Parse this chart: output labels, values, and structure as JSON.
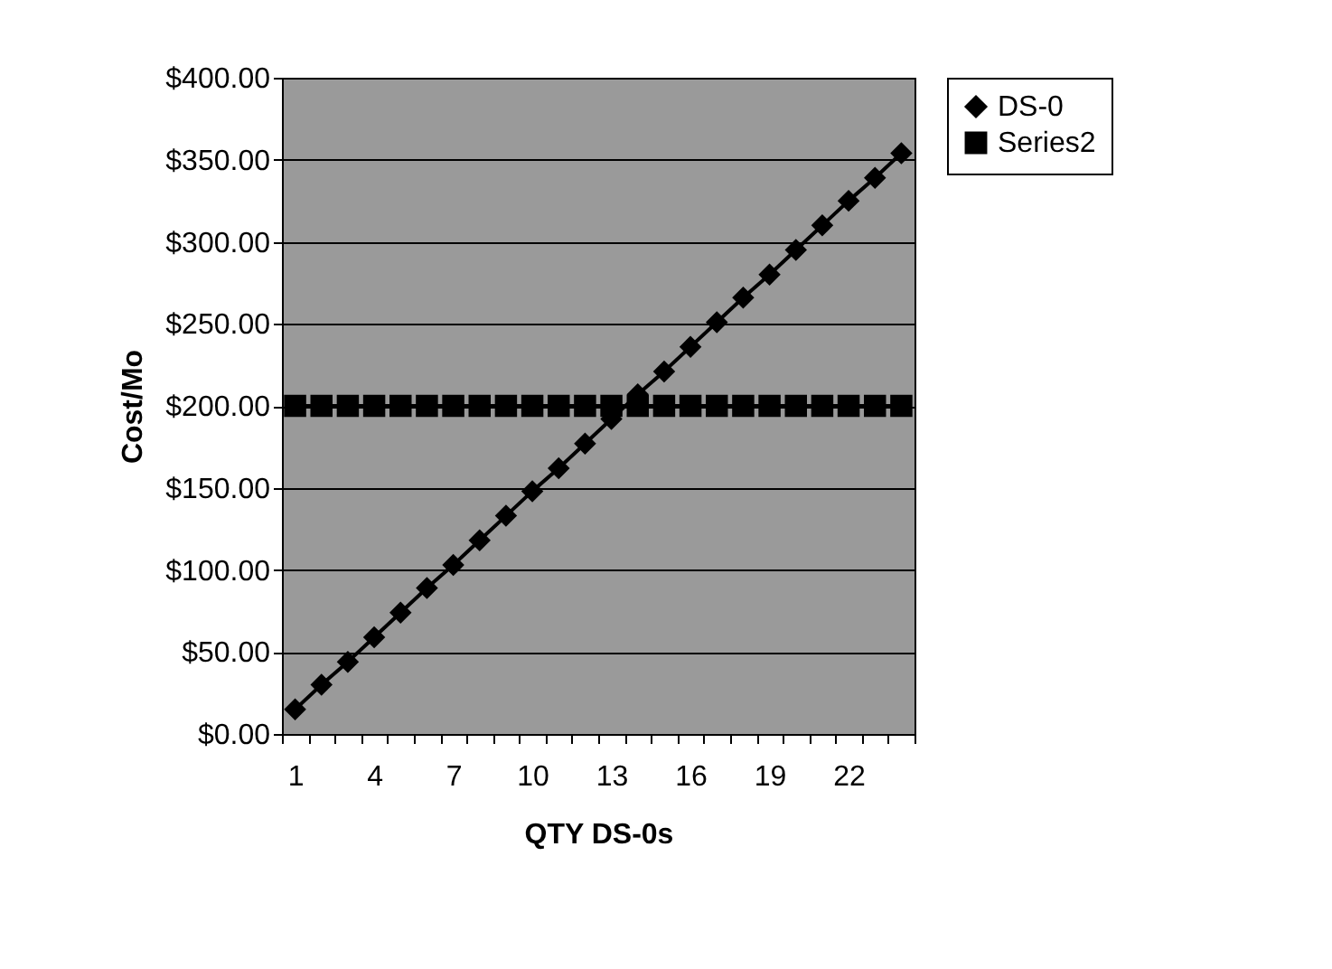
{
  "chart_data": {
    "type": "line",
    "xlabel": "QTY DS-0s",
    "ylabel": "Cost/Mo",
    "categories": [
      "1",
      null,
      null,
      "4",
      null,
      null,
      "7",
      null,
      null,
      "10",
      null,
      null,
      "13",
      null,
      null,
      "16",
      null,
      null,
      "19",
      null,
      null,
      "22",
      null,
      null
    ],
    "series": [
      {
        "name": "DS-0",
        "color": "#000000",
        "marker": "diamond",
        "values": [
          15,
          30,
          44,
          59,
          74,
          89,
          103,
          118,
          133,
          148,
          162,
          177,
          192,
          207,
          221,
          236,
          251,
          266,
          280,
          295,
          310,
          325,
          339,
          354
        ]
      },
      {
        "name": "Series2",
        "color": "#000000",
        "marker": "square",
        "values": [
          200,
          200,
          200,
          200,
          200,
          200,
          200,
          200,
          200,
          200,
          200,
          200,
          200,
          200,
          200,
          200,
          200,
          200,
          200,
          200,
          200,
          200,
          200,
          200
        ]
      }
    ],
    "ylim": [
      0,
      400
    ],
    "yticks": [
      {
        "value": 0,
        "label": "$0.00"
      },
      {
        "value": 50,
        "label": "$50.00"
      },
      {
        "value": 100,
        "label": "$100.00"
      },
      {
        "value": 150,
        "label": "$150.00"
      },
      {
        "value": 200,
        "label": "$200.00"
      },
      {
        "value": 250,
        "label": "$250.00"
      },
      {
        "value": 300,
        "label": "$300.00"
      },
      {
        "value": 350,
        "label": "$350.00"
      },
      {
        "value": 400,
        "label": "$400.00"
      }
    ],
    "grid": "y",
    "legend": "right"
  }
}
